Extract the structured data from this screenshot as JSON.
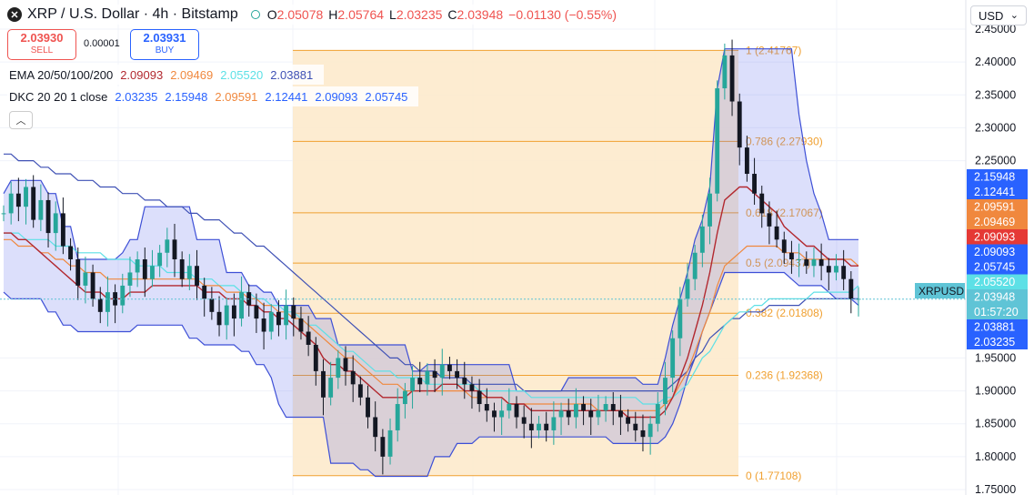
{
  "header": {
    "symbol_title": "XRP / U.S. Dollar · 4h · Bitstamp",
    "symbol_icon": "xrp-icon",
    "ohlc": [
      {
        "label": "O",
        "value": "2.05078"
      },
      {
        "label": "H",
        "value": "2.05764"
      },
      {
        "label": "L",
        "value": "2.03235"
      },
      {
        "label": "C",
        "value": "2.03948"
      }
    ],
    "change": "−0.01130 (−0.55%)",
    "sell_price": "2.03930",
    "sell_label": "SELL",
    "spread": "0.00001",
    "buy_price": "2.03931",
    "buy_label": "BUY",
    "ema_label": "EMA 20/50/100/200",
    "ema_values": [
      "2.09093",
      "2.09469",
      "2.05520",
      "2.03881"
    ],
    "dkc_label": "DKC 20 20 1 close",
    "dkc_values": [
      "2.03235",
      "2.15948",
      "2.09591",
      "2.12441",
      "2.09093",
      "2.05745"
    ],
    "currency": "USD"
  },
  "colors": {
    "up": "#26a69a",
    "down": "#131722",
    "ema20": "#b2282f",
    "ema50": "#f0883e",
    "ema100": "#5de0e6",
    "ema200": "#3f51b5",
    "channel": "#3d4fd6",
    "fib": "#f0a030"
  },
  "chart_data": {
    "type": "candlestick",
    "y_axis": {
      "range": [
        1.75,
        2.45
      ],
      "ticks": [
        "2.45000",
        "2.40000",
        "2.35000",
        "2.30000",
        "2.25000",
        "1.95000",
        "1.90000",
        "1.85000",
        "1.80000",
        "1.75000"
      ],
      "tick_values": [
        2.45,
        2.4,
        2.35,
        2.3,
        2.25,
        1.95,
        1.9,
        1.85,
        1.8,
        1.75
      ]
    },
    "fibonacci": {
      "levels": [
        {
          "ratio": "1",
          "price": 2.41767,
          "label": "1 (2.41767)"
        },
        {
          "ratio": "0.786",
          "price": 2.2793,
          "label": "0.786 (2.27930)"
        },
        {
          "ratio": "0.618",
          "price": 2.17067,
          "label": "0.618 (2.17067)"
        },
        {
          "ratio": "0.5",
          "price": 2.09437,
          "label": "0.5 (2.09437)"
        },
        {
          "ratio": "0.382",
          "price": 2.01808,
          "label": "0.382 (2.01808)"
        },
        {
          "ratio": "0.236",
          "price": 1.92368,
          "label": "0.236 (1.92368)"
        },
        {
          "ratio": "0",
          "price": 1.77108,
          "label": "0 (1.77108)"
        }
      ]
    },
    "price_labels": [
      {
        "text": "2.15948",
        "value": 2.15948,
        "color": "#2962ff"
      },
      {
        "text": "2.12441",
        "value": 2.12441,
        "color": "#2962ff"
      },
      {
        "text": "2.09591",
        "value": 2.09591,
        "color": "#f0883e"
      },
      {
        "text": "2.09469",
        "value": 2.09469,
        "color": "#f0883e"
      },
      {
        "text": "2.09093",
        "value": 2.09093,
        "color": "#e53935"
      },
      {
        "text": "2.09093",
        "value": 2.09093,
        "color": "#2962ff"
      },
      {
        "text": "2.05745",
        "value": 2.05745,
        "color": "#2962ff"
      },
      {
        "text": "2.05520",
        "value": 2.0552,
        "color": "#5de0e6"
      },
      {
        "text": "2.03948",
        "value": 2.03948,
        "color": "#5fc4d6"
      },
      {
        "text": "01:57:20",
        "value": 2.03,
        "color": "#5fc4d6"
      },
      {
        "text": "2.03881",
        "value": 2.03881,
        "color": "#2962ff"
      },
      {
        "text": "2.03235",
        "value": 2.03235,
        "color": "#2962ff"
      }
    ],
    "current_price": 2.03948,
    "symbol_label": "XRPUSD",
    "close_series": [
      2.17,
      2.2,
      2.18,
      2.21,
      2.16,
      2.19,
      2.14,
      2.17,
      2.12,
      2.1,
      2.06,
      2.08,
      2.04,
      2.02,
      2.05,
      2.03,
      2.06,
      2.08,
      2.1,
      2.07,
      2.09,
      2.11,
      2.13,
      2.1,
      2.07,
      2.09,
      2.06,
      2.04,
      2.02,
      2.0,
      2.03,
      2.01,
      2.05,
      2.03,
      2.01,
      1.99,
      2.02,
      2.0,
      2.03,
      2.01,
      1.99,
      1.97,
      1.93,
      1.89,
      1.92,
      1.95,
      1.93,
      1.91,
      1.89,
      1.86,
      1.83,
      1.8,
      1.84,
      1.88,
      1.9,
      1.92,
      1.91,
      1.93,
      1.92,
      1.94,
      1.93,
      1.92,
      1.91,
      1.9,
      1.88,
      1.87,
      1.86,
      1.87,
      1.88,
      1.86,
      1.85,
      1.84,
      1.85,
      1.84,
      1.86,
      1.87,
      1.86,
      1.88,
      1.87,
      1.86,
      1.87,
      1.88,
      1.87,
      1.86,
      1.85,
      1.84,
      1.83,
      1.85,
      1.88,
      1.92,
      1.98,
      2.04,
      2.07,
      2.11,
      2.15,
      2.2,
      2.36,
      2.41,
      2.34,
      2.27,
      2.23,
      2.2,
      2.17,
      2.15,
      2.13,
      2.11,
      2.1,
      2.1,
      2.09,
      2.1,
      2.09,
      2.08,
      2.09,
      2.07,
      2.04,
      2.04
    ],
    "ema20": [
      2.14,
      2.14,
      2.13,
      2.13,
      2.12,
      2.11,
      2.1,
      2.09,
      2.08,
      2.07,
      2.06,
      2.05,
      2.05,
      2.05,
      2.04,
      2.04,
      2.04,
      2.05,
      2.05,
      2.05,
      2.06,
      2.06,
      2.06,
      2.06,
      2.06,
      2.06,
      2.06,
      2.05,
      2.05,
      2.05,
      2.04,
      2.04,
      2.04,
      2.03,
      2.03,
      2.02,
      2.02,
      2.01,
      2.01,
      2.0,
      1.99,
      1.98,
      1.97,
      1.95,
      1.94,
      1.94,
      1.93,
      1.93,
      1.92,
      1.91,
      1.9,
      1.89,
      1.89,
      1.89,
      1.89,
      1.9,
      1.9,
      1.9,
      1.9,
      1.91,
      1.91,
      1.91,
      1.9,
      1.9,
      1.9,
      1.89,
      1.89,
      1.89,
      1.88,
      1.88,
      1.88,
      1.87,
      1.87,
      1.87,
      1.87,
      1.87,
      1.87,
      1.87,
      1.87,
      1.87,
      1.87,
      1.87,
      1.87,
      1.87,
      1.86,
      1.86,
      1.86,
      1.86,
      1.86,
      1.87,
      1.89,
      1.92,
      1.95,
      1.99,
      2.03,
      2.08,
      2.14,
      2.19,
      2.2,
      2.21,
      2.21,
      2.2,
      2.19,
      2.18,
      2.17,
      2.15,
      2.14,
      2.13,
      2.12,
      2.12,
      2.11,
      2.1,
      2.1,
      2.1,
      2.09,
      2.09
    ],
    "ema50": [
      2.13,
      2.13,
      2.12,
      2.12,
      2.12,
      2.11,
      2.11,
      2.1,
      2.1,
      2.09,
      2.09,
      2.08,
      2.08,
      2.08,
      2.07,
      2.07,
      2.07,
      2.07,
      2.07,
      2.07,
      2.07,
      2.07,
      2.07,
      2.07,
      2.07,
      2.07,
      2.07,
      2.06,
      2.06,
      2.06,
      2.05,
      2.05,
      2.05,
      2.04,
      2.04,
      2.03,
      2.03,
      2.02,
      2.02,
      2.01,
      2.01,
      2.0,
      1.99,
      1.98,
      1.97,
      1.96,
      1.95,
      1.95,
      1.94,
      1.93,
      1.92,
      1.91,
      1.91,
      1.91,
      1.9,
      1.9,
      1.9,
      1.9,
      1.9,
      1.9,
      1.9,
      1.9,
      1.9,
      1.89,
      1.89,
      1.89,
      1.89,
      1.89,
      1.88,
      1.88,
      1.88,
      1.88,
      1.88,
      1.88,
      1.88,
      1.88,
      1.88,
      1.88,
      1.88,
      1.88,
      1.87,
      1.87,
      1.87,
      1.87,
      1.87,
      1.87,
      1.87,
      1.87,
      1.87,
      1.88,
      1.89,
      1.91,
      1.93,
      1.96,
      1.99,
      2.02,
      2.06,
      2.09,
      2.1,
      2.11,
      2.12,
      2.12,
      2.12,
      2.12,
      2.12,
      2.11,
      2.11,
      2.11,
      2.1,
      2.1,
      2.1,
      2.1,
      2.1,
      2.1,
      2.1,
      2.09
    ],
    "ema100": [
      2.14,
      2.14,
      2.14,
      2.13,
      2.13,
      2.13,
      2.13,
      2.12,
      2.12,
      2.12,
      2.11,
      2.11,
      2.11,
      2.11,
      2.1,
      2.1,
      2.1,
      2.1,
      2.09,
      2.09,
      2.09,
      2.09,
      2.08,
      2.08,
      2.08,
      2.08,
      2.07,
      2.07,
      2.07,
      2.06,
      2.06,
      2.06,
      2.05,
      2.05,
      2.04,
      2.04,
      2.03,
      2.03,
      2.02,
      2.02,
      2.01,
      2.0,
      2.0,
      1.99,
      1.98,
      1.97,
      1.96,
      1.96,
      1.95,
      1.94,
      1.93,
      1.93,
      1.93,
      1.92,
      1.92,
      1.92,
      1.92,
      1.91,
      1.91,
      1.91,
      1.91,
      1.91,
      1.91,
      1.91,
      1.9,
      1.9,
      1.9,
      1.9,
      1.9,
      1.9,
      1.9,
      1.89,
      1.89,
      1.89,
      1.89,
      1.89,
      1.89,
      1.89,
      1.89,
      1.89,
      1.89,
      1.89,
      1.89,
      1.89,
      1.89,
      1.89,
      1.88,
      1.88,
      1.88,
      1.89,
      1.89,
      1.9,
      1.91,
      1.93,
      1.95,
      1.96,
      1.98,
      2.0,
      2.01,
      2.02,
      2.02,
      2.03,
      2.03,
      2.04,
      2.04,
      2.04,
      2.04,
      2.04,
      2.04,
      2.05,
      2.05,
      2.05,
      2.05,
      2.05,
      2.05,
      2.06
    ],
    "ema200": [
      2.26,
      2.26,
      2.25,
      2.25,
      2.25,
      2.24,
      2.24,
      2.23,
      2.23,
      2.23,
      2.22,
      2.22,
      2.22,
      2.21,
      2.21,
      2.21,
      2.2,
      2.2,
      2.2,
      2.19,
      2.19,
      2.19,
      2.18,
      2.18,
      2.18,
      2.17,
      2.17,
      2.16,
      2.16,
      2.16,
      2.15,
      2.14,
      2.14,
      2.13,
      2.12,
      2.12,
      2.11,
      2.1,
      2.09,
      2.08,
      2.07,
      2.06,
      2.05,
      2.04,
      2.03,
      2.02,
      2.01,
      2.0,
      1.99,
      1.98,
      1.97,
      1.96,
      1.95,
      1.95,
      1.94,
      1.94,
      1.93,
      1.93,
      1.93,
      1.92,
      1.92,
      1.92,
      1.92,
      1.91,
      1.91,
      1.91,
      1.91,
      1.91,
      1.91,
      1.91,
      1.9,
      1.9,
      1.9,
      1.9,
      1.9,
      1.9,
      1.9,
      1.9,
      1.9,
      1.9,
      1.9,
      1.9,
      1.9,
      1.9,
      1.9,
      1.9,
      1.9,
      1.9,
      1.9,
      1.9,
      1.91,
      1.92,
      1.93,
      1.95,
      1.96,
      1.98,
      1.99,
      2.0,
      2.01,
      2.01,
      2.02,
      2.02,
      2.02,
      2.03,
      2.03,
      2.03,
      2.03,
      2.03,
      2.04,
      2.04,
      2.04,
      2.04,
      2.04,
      2.04,
      2.04,
      2.04
    ],
    "channel_upper": [
      2.2,
      2.22,
      2.22,
      2.22,
      2.22,
      2.22,
      2.2,
      2.2,
      2.15,
      2.15,
      2.1,
      2.1,
      2.1,
      2.1,
      2.1,
      2.1,
      2.11,
      2.13,
      2.13,
      2.18,
      2.18,
      2.18,
      2.18,
      2.18,
      2.18,
      2.18,
      2.13,
      2.13,
      2.13,
      2.13,
      2.08,
      2.08,
      2.08,
      2.06,
      2.06,
      2.05,
      2.05,
      2.03,
      2.03,
      2.03,
      2.03,
      2.03,
      2.01,
      2.01,
      2.01,
      1.97,
      1.97,
      1.97,
      1.97,
      1.97,
      1.97,
      1.97,
      1.97,
      1.97,
      1.97,
      1.93,
      1.93,
      1.94,
      1.94,
      1.94,
      1.94,
      1.94,
      1.94,
      1.94,
      1.94,
      1.94,
      1.94,
      1.94,
      1.94,
      1.9,
      1.9,
      1.9,
      1.9,
      1.9,
      1.9,
      1.9,
      1.92,
      1.92,
      1.92,
      1.92,
      1.92,
      1.92,
      1.92,
      1.92,
      1.92,
      1.92,
      1.91,
      1.91,
      1.91,
      1.95,
      2.0,
      2.04,
      2.08,
      2.13,
      2.16,
      2.21,
      2.36,
      2.42,
      2.42,
      2.42,
      2.42,
      2.42,
      2.42,
      2.42,
      2.42,
      2.42,
      2.42,
      2.32,
      2.25,
      2.2,
      2.17,
      2.13,
      2.13,
      2.13,
      2.13,
      2.13
    ],
    "channel_lower": [
      2.05,
      2.04,
      2.04,
      2.04,
      2.04,
      2.04,
      2.02,
      2.02,
      2.0,
      2.0,
      1.99,
      1.99,
      1.99,
      1.99,
      1.99,
      1.99,
      1.99,
      1.99,
      2.0,
      2.0,
      2.0,
      2.0,
      2.0,
      2.0,
      2.0,
      1.98,
      1.98,
      1.97,
      1.97,
      1.97,
      1.97,
      1.97,
      1.96,
      1.96,
      1.94,
      1.94,
      1.92,
      1.88,
      1.86,
      1.86,
      1.86,
      1.86,
      1.86,
      1.86,
      1.79,
      1.79,
      1.79,
      1.79,
      1.78,
      1.78,
      1.77,
      1.77,
      1.77,
      1.77,
      1.77,
      1.77,
      1.77,
      1.77,
      1.8,
      1.8,
      1.8,
      1.82,
      1.82,
      1.82,
      1.83,
      1.83,
      1.83,
      1.83,
      1.83,
      1.83,
      1.83,
      1.83,
      1.83,
      1.83,
      1.83,
      1.83,
      1.83,
      1.83,
      1.83,
      1.83,
      1.83,
      1.83,
      1.82,
      1.82,
      1.82,
      1.82,
      1.82,
      1.82,
      1.82,
      1.83,
      1.85,
      1.88,
      1.92,
      1.95,
      1.99,
      2.02,
      2.05,
      2.08,
      2.08,
      2.08,
      2.08,
      2.08,
      2.08,
      2.08,
      2.08,
      2.08,
      2.07,
      2.06,
      2.06,
      2.06,
      2.06,
      2.05,
      2.04,
      2.04,
      2.04,
      2.03
    ]
  }
}
